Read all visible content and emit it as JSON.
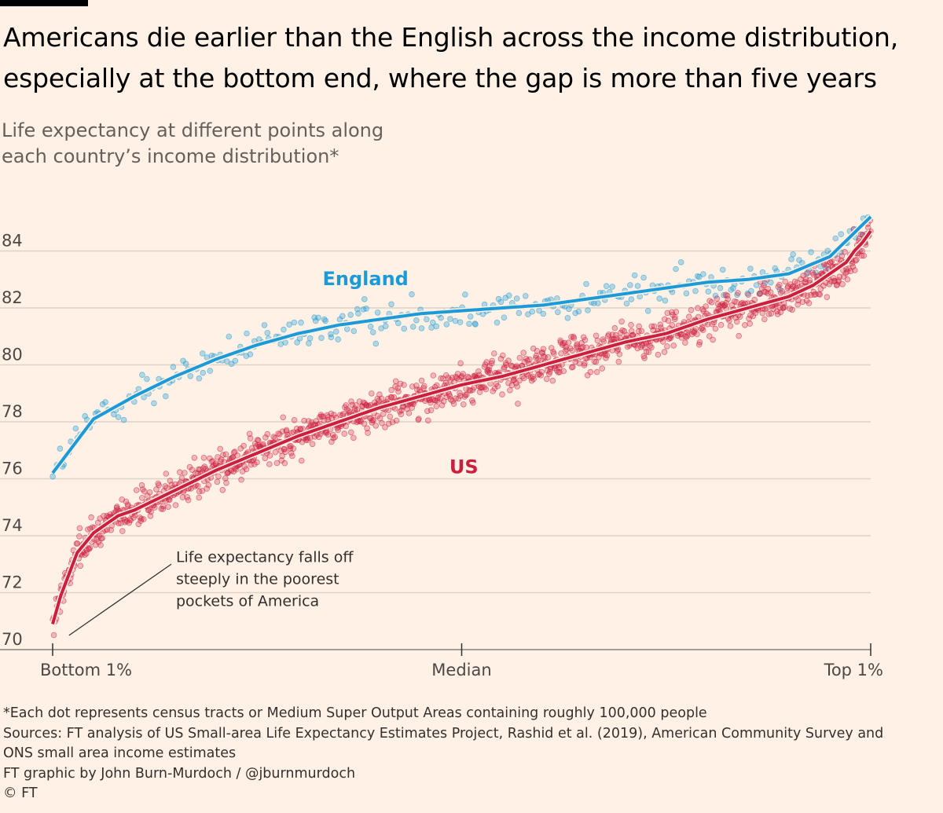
{
  "title": "Americans die earlier than the English across the income distribution, especially at the bottom end, where the gap is more than five years",
  "subtitle": "Life expectancy at different points along\neach country’s income distribution*",
  "footnotes": {
    "note": "*Each dot represents census tracts or Medium Super Output Areas containing roughly 100,000 people",
    "sources_1": "Sources: FT analysis of US Small-area Life Expectancy Estimates Project, Rashid et al. (2019), American Community Survey and",
    "sources_2": "ONS small area income estimates",
    "credit": "FT graphic by John Burn-Murdoch / @jburnmurdoch",
    "copyright": "© FT"
  },
  "chart_data": {
    "type": "scatter",
    "x_range": [
      0,
      100
    ],
    "x_ticks": [
      {
        "x": 0,
        "label": "Bottom 1%"
      },
      {
        "x": 50,
        "label": "Median"
      },
      {
        "x": 100,
        "label": "Top 1%"
      }
    ],
    "ylim": [
      70,
      86
    ],
    "y_ticks": [
      70,
      72,
      74,
      76,
      78,
      80,
      82,
      84
    ],
    "grid": true,
    "colors": {
      "England": "#1a9bd7",
      "US": "#cc1f3f"
    },
    "series": [
      {
        "name": "England",
        "trend_x": [
          0,
          5,
          10,
          15,
          20,
          25,
          30,
          35,
          40,
          45,
          50,
          55,
          60,
          65,
          70,
          75,
          80,
          85,
          90,
          95,
          100
        ],
        "trend_y": [
          76.2,
          78.1,
          78.9,
          79.6,
          80.2,
          80.7,
          81.1,
          81.4,
          81.6,
          81.8,
          81.9,
          82.0,
          82.1,
          82.3,
          82.5,
          82.7,
          82.9,
          83.0,
          83.2,
          83.8,
          85.2
        ],
        "noise_sd": 0.55,
        "points": 300
      },
      {
        "name": "US",
        "trend_x": [
          0,
          1,
          3,
          5,
          8,
          10,
          15,
          20,
          25,
          30,
          35,
          40,
          45,
          50,
          55,
          60,
          65,
          70,
          75,
          80,
          85,
          90,
          93,
          95,
          97,
          98,
          99,
          100
        ],
        "trend_y": [
          70.9,
          71.9,
          73.4,
          74.1,
          74.7,
          74.9,
          75.6,
          76.3,
          76.9,
          77.5,
          78.0,
          78.5,
          78.9,
          79.3,
          79.6,
          80.0,
          80.4,
          80.8,
          81.1,
          81.6,
          82.0,
          82.4,
          82.8,
          83.2,
          83.6,
          84.0,
          84.3,
          84.7
        ],
        "noise_sd": 0.55,
        "points": 1400
      }
    ],
    "series_labels": [
      {
        "text": "England",
        "x": 33,
        "y": 82.8
      },
      {
        "text": "US",
        "x": 48.5,
        "y": 76.2
      }
    ],
    "annotation": {
      "lines": [
        "Life expectancy falls off",
        "steeply in the poorest",
        "pockets of America"
      ],
      "text_x": 14.5,
      "text_y": 73.3,
      "pointer_from": [
        14.5,
        73.0
      ],
      "pointer_to": [
        2,
        70.5
      ]
    }
  }
}
